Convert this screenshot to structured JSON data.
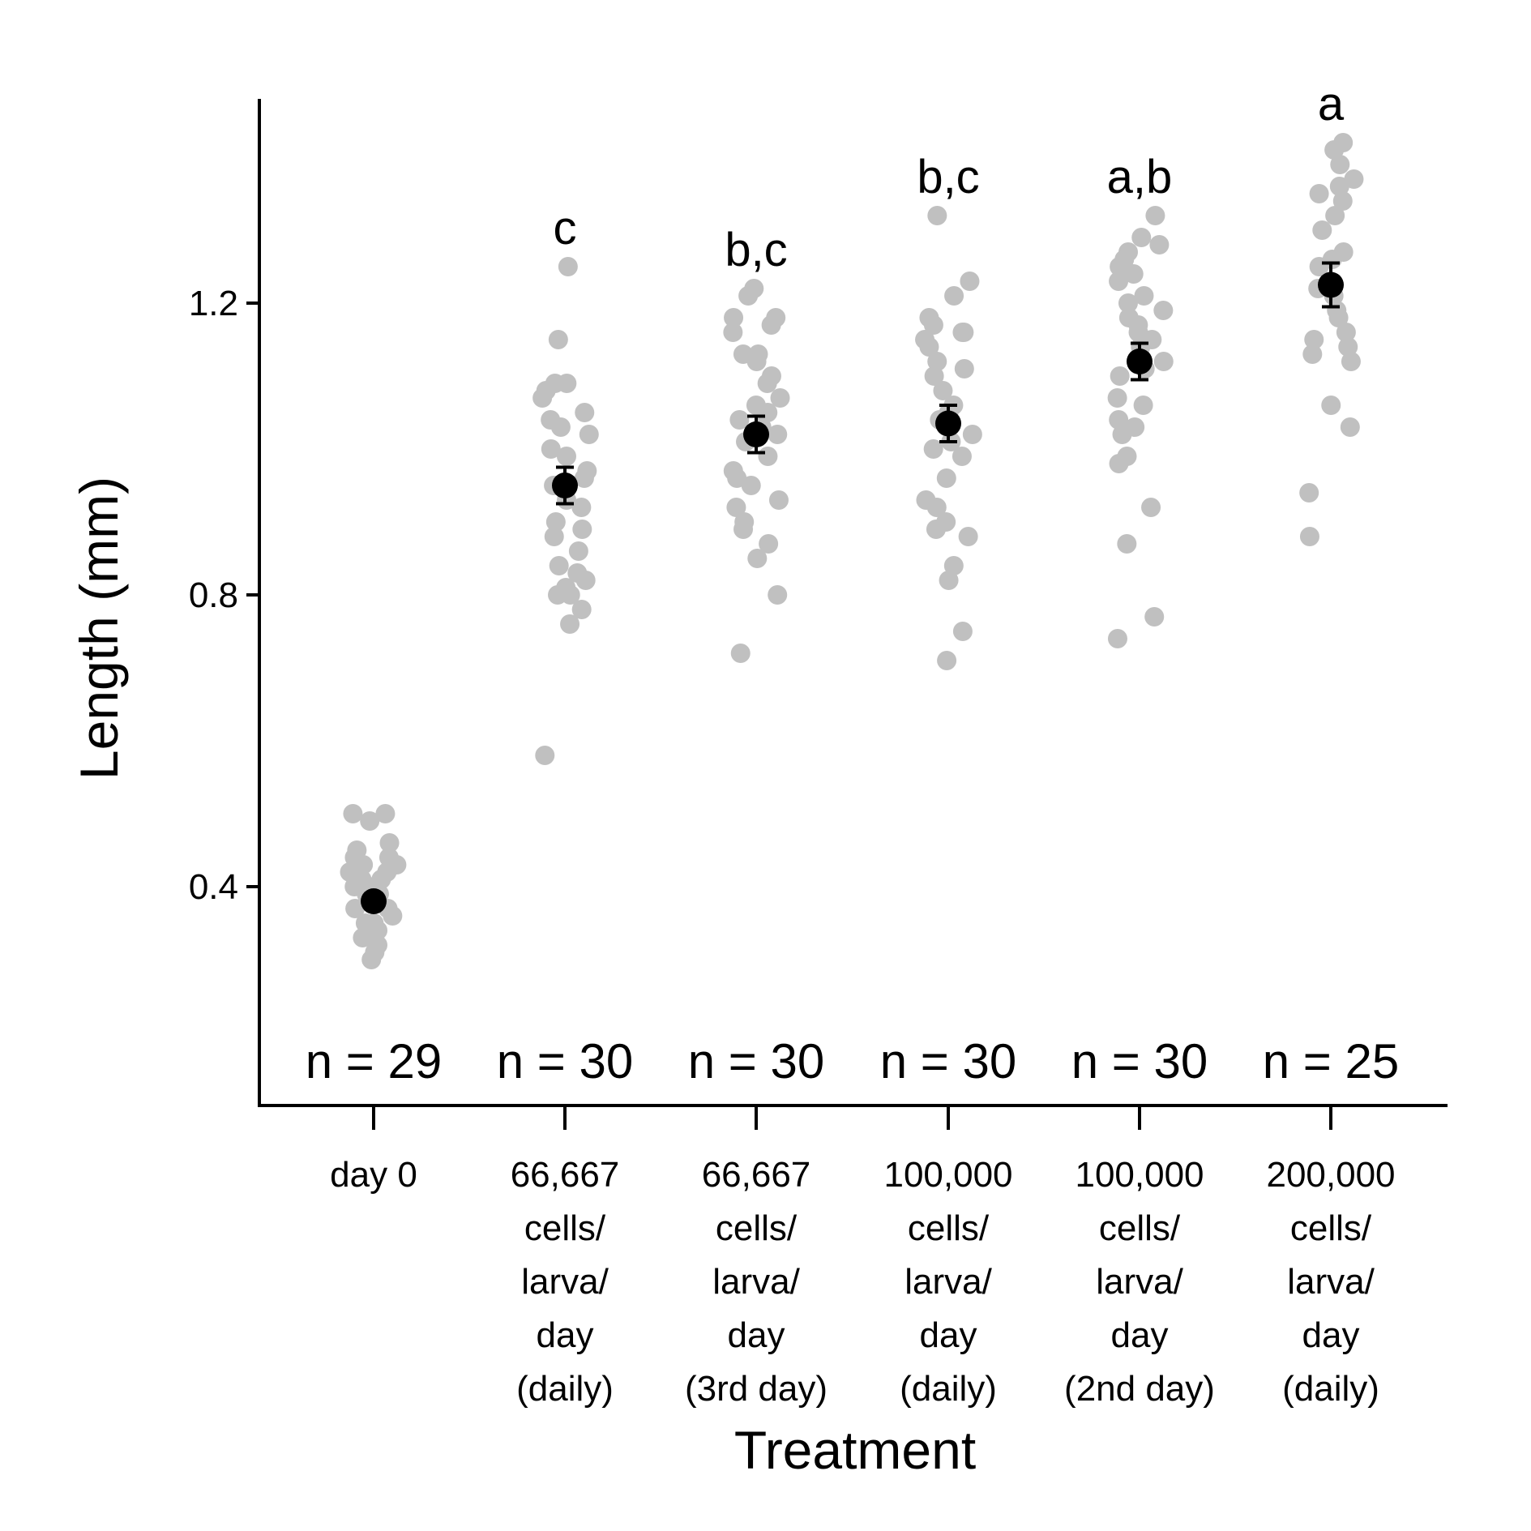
{
  "chart_data": {
    "type": "scatter",
    "title": "",
    "xlabel": "Treatment",
    "ylabel": "Length (mm)",
    "ylim": [
      0.1,
      1.48
    ],
    "y_ticks": [
      0.4,
      0.8,
      1.2
    ],
    "y_tick_labels": [
      "0.4",
      "0.8",
      "1.2"
    ],
    "grid": false,
    "point_color": "#c0c0c0",
    "mean_color": "#000000",
    "categories": [
      {
        "label_lines": [
          "day 0"
        ],
        "n_label": "n = 29",
        "letters": "",
        "mean": 0.38,
        "se": 0.006,
        "points": [
          0.5,
          0.5,
          0.49,
          0.46,
          0.45,
          0.44,
          0.44,
          0.43,
          0.43,
          0.42,
          0.42,
          0.41,
          0.41,
          0.4,
          0.4,
          0.39,
          0.39,
          0.38,
          0.38,
          0.37,
          0.37,
          0.36,
          0.35,
          0.35,
          0.34,
          0.33,
          0.32,
          0.31,
          0.3
        ]
      },
      {
        "label_lines": [
          "66,667",
          "cells/",
          "larva/",
          "day",
          "(daily)"
        ],
        "n_label": "n = 30",
        "letters": "c",
        "mean": 0.95,
        "se": 0.025,
        "points": [
          1.25,
          1.15,
          1.09,
          1.09,
          1.08,
          1.07,
          1.05,
          1.04,
          1.03,
          1.02,
          1.0,
          0.99,
          0.97,
          0.96,
          0.95,
          0.93,
          0.92,
          0.9,
          0.89,
          0.88,
          0.86,
          0.84,
          0.83,
          0.82,
          0.81,
          0.8,
          0.8,
          0.78,
          0.76,
          0.58
        ]
      },
      {
        "label_lines": [
          "66,667",
          "cells/",
          "larva/",
          "day",
          "(3rd day)"
        ],
        "n_label": "n = 30",
        "letters": "b,c",
        "mean": 1.02,
        "se": 0.025,
        "points": [
          1.22,
          1.21,
          1.18,
          1.18,
          1.17,
          1.16,
          1.13,
          1.13,
          1.12,
          1.1,
          1.09,
          1.07,
          1.06,
          1.05,
          1.04,
          1.03,
          1.02,
          1.01,
          0.99,
          0.97,
          0.96,
          0.95,
          0.93,
          0.92,
          0.9,
          0.89,
          0.87,
          0.85,
          0.8,
          0.72
        ]
      },
      {
        "label_lines": [
          "100,000",
          "cells/",
          "larva/",
          "day",
          "(daily)"
        ],
        "n_label": "n = 30",
        "letters": "b,c",
        "mean": 1.035,
        "se": 0.025,
        "points": [
          1.32,
          1.23,
          1.21,
          1.18,
          1.17,
          1.16,
          1.16,
          1.15,
          1.14,
          1.12,
          1.11,
          1.1,
          1.08,
          1.06,
          1.05,
          1.04,
          1.02,
          1.01,
          1.0,
          0.99,
          0.96,
          0.93,
          0.92,
          0.9,
          0.89,
          0.88,
          0.84,
          0.82,
          0.75,
          0.71
        ]
      },
      {
        "label_lines": [
          "100,000",
          "cells/",
          "larva/",
          "day",
          "(2nd day)"
        ],
        "n_label": "n = 30",
        "letters": "a,b",
        "mean": 1.12,
        "se": 0.025,
        "points": [
          1.32,
          1.29,
          1.28,
          1.27,
          1.26,
          1.25,
          1.24,
          1.23,
          1.21,
          1.2,
          1.19,
          1.18,
          1.17,
          1.16,
          1.15,
          1.14,
          1.12,
          1.11,
          1.1,
          1.07,
          1.06,
          1.04,
          1.03,
          1.02,
          0.99,
          0.98,
          0.92,
          0.87,
          0.77,
          0.74
        ]
      },
      {
        "label_lines": [
          "200,000",
          "cells/",
          "larva/",
          "day",
          "(daily)"
        ],
        "n_label": "n = 25",
        "letters": "a",
        "mean": 1.225,
        "se": 0.03,
        "points": [
          1.42,
          1.41,
          1.39,
          1.37,
          1.36,
          1.35,
          1.34,
          1.32,
          1.3,
          1.27,
          1.26,
          1.25,
          1.22,
          1.21,
          1.19,
          1.18,
          1.16,
          1.15,
          1.14,
          1.13,
          1.12,
          1.06,
          1.03,
          0.94,
          0.88
        ]
      }
    ]
  }
}
